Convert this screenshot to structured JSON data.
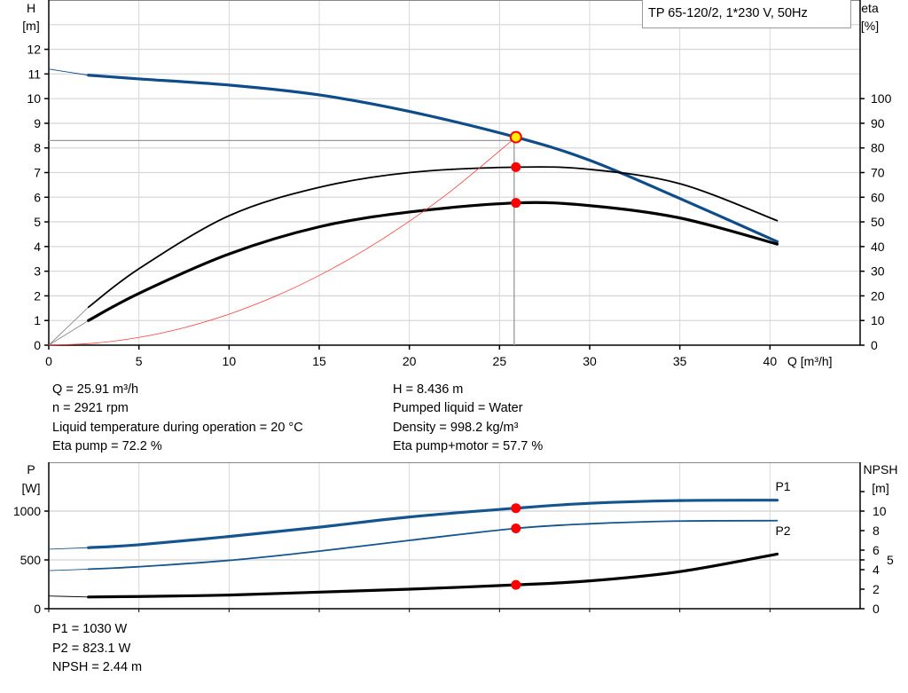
{
  "legend_title": "TP 65-120/2, 1*230 V, 50Hz",
  "colors": {
    "head": "#0e4c8a",
    "power": "#15558f",
    "eta": "#000000",
    "npsh": "#000000",
    "system": "#ff3b3b",
    "operating_point": "#ff0000",
    "operating_point_head": "#ffee00",
    "grid": "#d8d8d8"
  },
  "info_top": {
    "left": [
      "Q = 25.91 m³/h",
      "n = 2921 rpm",
      "Liquid temperature during operation = 20 °C",
      "Eta pump = 72.2 %"
    ],
    "right": [
      "H = 8.436 m",
      "Pumped liquid = Water",
      "Density = 998.2 kg/m³",
      "Eta pump+motor = 57.7 %"
    ]
  },
  "info_bottom": [
    "P1 = 1030 W",
    "P2 = 823.1 W",
    "NPSH = 2.44 m"
  ],
  "chart_data": [
    {
      "type": "line",
      "xlabel": "Q [m³/h]",
      "ylabel": [
        "H",
        "[m]"
      ],
      "y2label": [
        "eta",
        "[%]"
      ],
      "xlim": [
        0,
        45
      ],
      "ylim": [
        0,
        14
      ],
      "y2lim": [
        0,
        140
      ],
      "xticks": [
        0,
        5,
        10,
        15,
        20,
        25,
        30,
        35,
        40
      ],
      "yticks": [
        0,
        1,
        2,
        3,
        4,
        5,
        6,
        7,
        8,
        9,
        10,
        11,
        12
      ],
      "y2ticks": [
        0,
        10,
        20,
        30,
        40,
        50,
        60,
        70,
        80,
        90,
        100
      ],
      "grid": true,
      "series": [
        {
          "key": "head",
          "axis": "y",
          "x": [
            2.2,
            5,
            10,
            15,
            20,
            25.91,
            30,
            35,
            40.4
          ],
          "y": [
            10.95,
            10.8,
            10.55,
            10.15,
            9.48,
            8.436,
            7.5,
            5.95,
            4.2
          ],
          "ext": {
            "x": [
              0,
              2.2
            ],
            "y": [
              11.2,
              10.95
            ]
          }
        },
        {
          "key": "eta_pump",
          "axis": "y2",
          "x": [
            2.2,
            5,
            10,
            15,
            20,
            25.91,
            30,
            35,
            40.4
          ],
          "y": [
            15.4,
            31,
            52.5,
            64,
            70,
            72.2,
            71.3,
            65.5,
            50.5
          ],
          "ext": {
            "x": [
              0,
              2.2
            ],
            "y": [
              0,
              15.4
            ]
          }
        },
        {
          "key": "eta_pump_motor",
          "axis": "y2",
          "x": [
            2.2,
            5,
            10,
            15,
            20,
            25.91,
            30,
            35,
            40.4
          ],
          "y": [
            10,
            21,
            37,
            48,
            54,
            57.7,
            56.6,
            51.6,
            41
          ],
          "ext": {
            "x": [
              0,
              2.2
            ],
            "y": [
              0,
              10
            ]
          }
        },
        {
          "key": "system",
          "axis": "y",
          "x": [
            0,
            2.5,
            5,
            7.5,
            10,
            12.5,
            15,
            17.5,
            20,
            22.5,
            25.91
          ],
          "y": [
            0,
            0.079,
            0.314,
            0.707,
            1.257,
            1.964,
            2.828,
            3.849,
            5.027,
            6.362,
            8.436
          ]
        }
      ],
      "operating_point": {
        "Q": 25.91,
        "H": 8.436,
        "eta_pump": 72.2,
        "eta_pump_motor": 57.7
      }
    },
    {
      "type": "line",
      "ylabel": [
        "P",
        "[W]"
      ],
      "y2label": [
        "NPSH",
        "[m]"
      ],
      "xlim": [
        0,
        45
      ],
      "ylim": [
        0,
        1500
      ],
      "y2lim": [
        0,
        15
      ],
      "yticks": [
        0,
        500,
        1000
      ],
      "y2ticks": [
        0,
        2,
        4,
        5,
        6,
        8,
        10,
        12
      ],
      "y2ticklabels": [
        "0",
        "2",
        "4",
        "5",
        "6",
        "8",
        "10",
        ""
      ],
      "grid": true,
      "series": [
        {
          "key": "P1",
          "name": "P1",
          "axis": "y",
          "x": [
            2.2,
            5,
            10,
            15,
            20,
            25.91,
            30,
            35,
            40.4
          ],
          "y": [
            625,
            655,
            740,
            835,
            940,
            1030,
            1080,
            1108,
            1112
          ],
          "ext": {
            "x": [
              0,
              2.2
            ],
            "y": [
              610,
              625
            ]
          }
        },
        {
          "key": "P2",
          "name": "P2",
          "axis": "y",
          "x": [
            2.2,
            5,
            10,
            15,
            20,
            25.91,
            30,
            35,
            40.4
          ],
          "y": [
            405,
            430,
            495,
            590,
            700,
            823.1,
            870,
            898,
            902
          ],
          "ext": {
            "x": [
              0,
              2.2
            ],
            "y": [
              390,
              405
            ]
          }
        },
        {
          "key": "NPSH",
          "axis": "y2",
          "x": [
            2.2,
            5,
            10,
            15,
            20,
            25.91,
            30,
            35,
            40.4
          ],
          "y": [
            1.2,
            1.25,
            1.4,
            1.7,
            2.0,
            2.44,
            2.85,
            3.8,
            5.6
          ],
          "ext": {
            "x": [
              0,
              2.2
            ],
            "y": [
              1.3,
              1.2
            ]
          }
        }
      ],
      "operating_point": {
        "Q": 25.91,
        "P1": 1030,
        "P2": 823.1,
        "NPSH": 2.44
      }
    }
  ]
}
